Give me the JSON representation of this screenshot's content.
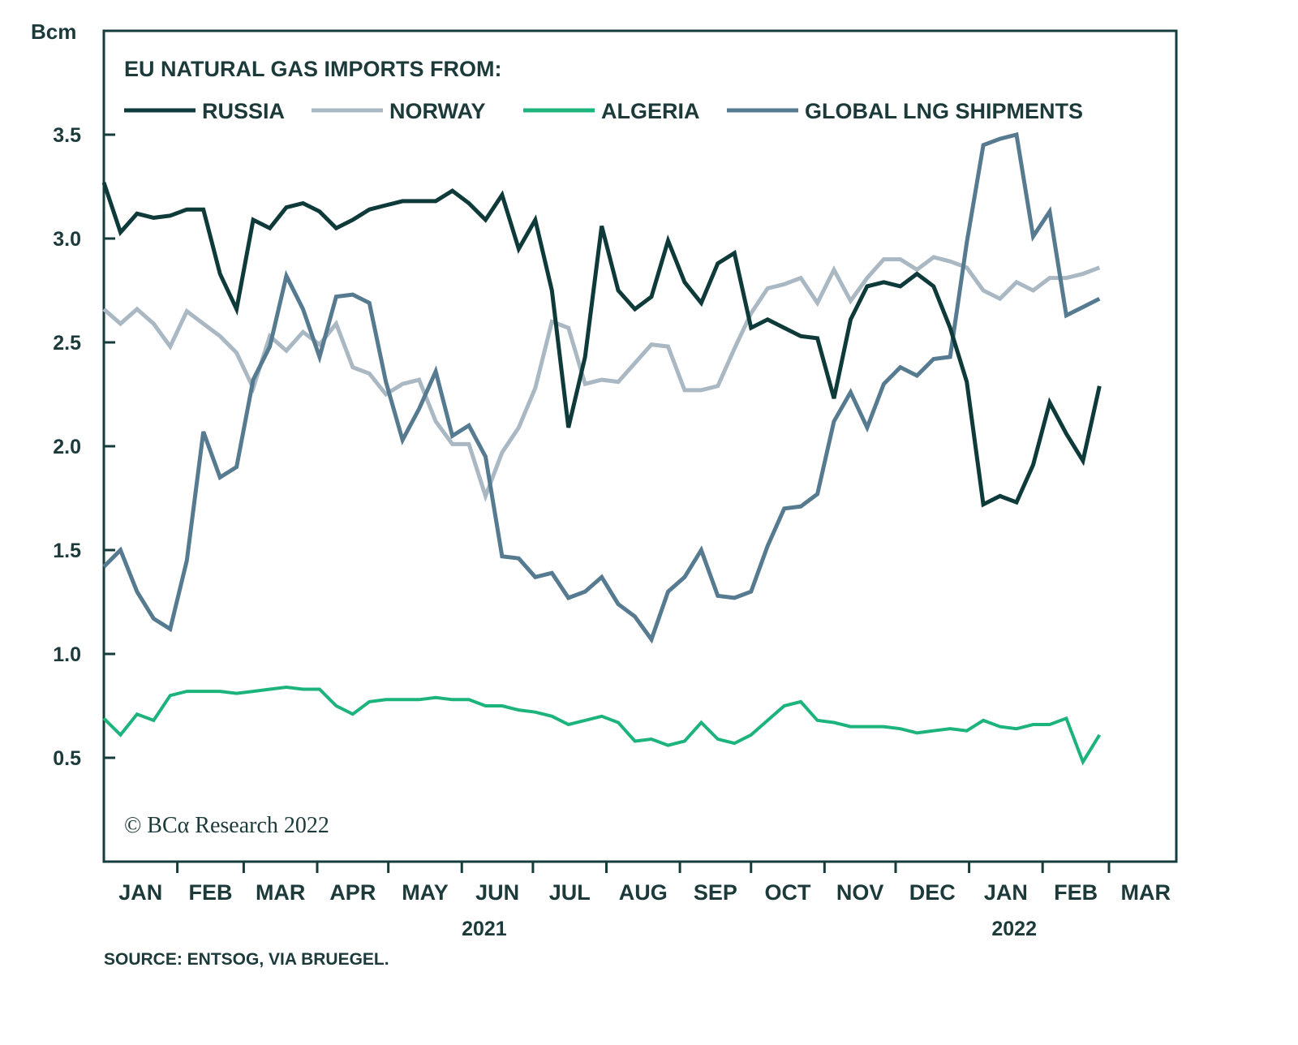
{
  "chart_data": {
    "type": "line",
    "title": "EU NATURAL GAS IMPORTS FROM:",
    "ylabel": "Bcm",
    "source": "SOURCE: ENTSOG, VIA BRUEGEL.",
    "copyright": "© BCα Research 2022",
    "ylim": [
      0,
      4
    ],
    "yticks": [
      "0.5",
      "1.0",
      "1.5",
      "2.0",
      "2.5",
      "3.0",
      "3.5"
    ],
    "xlim": [
      "2021-01-01",
      "2022-03-31"
    ],
    "month_labels": [
      "JAN",
      "FEB",
      "MAR",
      "APR",
      "MAY",
      "JUN",
      "JUL",
      "AUG",
      "SEP",
      "OCT",
      "NOV",
      "DEC",
      "JAN",
      "FEB",
      "MAR"
    ],
    "year_labels": [
      "2021",
      "2022"
    ],
    "grid": false,
    "legend_placement": "top-left",
    "x": [
      "2021-01-01",
      "2021-01-08",
      "2021-01-15",
      "2021-01-22",
      "2021-01-29",
      "2021-02-05",
      "2021-02-12",
      "2021-02-19",
      "2021-02-26",
      "2021-03-05",
      "2021-03-12",
      "2021-03-19",
      "2021-03-26",
      "2021-04-02",
      "2021-04-09",
      "2021-04-16",
      "2021-04-23",
      "2021-04-30",
      "2021-05-07",
      "2021-05-14",
      "2021-05-21",
      "2021-05-28",
      "2021-06-04",
      "2021-06-11",
      "2021-06-18",
      "2021-06-25",
      "2021-07-02",
      "2021-07-09",
      "2021-07-16",
      "2021-07-23",
      "2021-07-30",
      "2021-08-06",
      "2021-08-13",
      "2021-08-20",
      "2021-08-27",
      "2021-09-03",
      "2021-09-10",
      "2021-09-17",
      "2021-09-24",
      "2021-10-01",
      "2021-10-08",
      "2021-10-15",
      "2021-10-22",
      "2021-10-29",
      "2021-11-05",
      "2021-11-12",
      "2021-11-19",
      "2021-11-26",
      "2021-12-03",
      "2021-12-10",
      "2021-12-17",
      "2021-12-24",
      "2021-12-31",
      "2022-01-07",
      "2022-01-14",
      "2022-01-21",
      "2022-01-28",
      "2022-02-04",
      "2022-02-11",
      "2022-02-18",
      "2022-02-25"
    ],
    "series": [
      {
        "name": "RUSSIA",
        "color": "#0f3a3a",
        "width": 5,
        "values": [
          3.27,
          3.03,
          3.12,
          3.1,
          3.11,
          3.14,
          3.14,
          2.83,
          2.66,
          3.09,
          3.05,
          3.15,
          3.17,
          3.13,
          3.05,
          3.09,
          3.14,
          3.16,
          3.18,
          3.18,
          3.18,
          3.23,
          3.17,
          3.09,
          3.21,
          2.95,
          3.09,
          2.75,
          2.09,
          2.43,
          3.06,
          2.75,
          2.66,
          2.72,
          2.99,
          2.79,
          2.69,
          2.88,
          2.93,
          2.57,
          2.61,
          2.57,
          2.53,
          2.52,
          2.23,
          2.61,
          2.77,
          2.79,
          2.77,
          2.83,
          2.77,
          2.57,
          2.31,
          1.72,
          1.76,
          1.73,
          1.91,
          2.21,
          2.06,
          1.93,
          2.29
        ]
      },
      {
        "name": "NORWAY",
        "color": "#a9b8c3",
        "width": 5,
        "values": [
          2.66,
          2.59,
          2.66,
          2.59,
          2.48,
          2.65,
          2.59,
          2.53,
          2.45,
          2.28,
          2.53,
          2.46,
          2.55,
          2.49,
          2.59,
          2.38,
          2.35,
          2.25,
          2.3,
          2.32,
          2.12,
          2.01,
          2.01,
          1.76,
          1.97,
          2.09,
          2.28,
          2.6,
          2.57,
          2.3,
          2.32,
          2.31,
          2.4,
          2.49,
          2.48,
          2.27,
          2.27,
          2.29,
          2.47,
          2.64,
          2.76,
          2.78,
          2.81,
          2.69,
          2.85,
          2.7,
          2.81,
          2.9,
          2.9,
          2.85,
          2.91,
          2.89,
          2.86,
          2.75,
          2.71,
          2.79,
          2.75,
          2.81,
          2.81,
          2.83,
          2.86
        ]
      },
      {
        "name": "ALGERIA",
        "color": "#1db37d",
        "width": 4,
        "values": [
          0.69,
          0.61,
          0.71,
          0.68,
          0.8,
          0.82,
          0.82,
          0.82,
          0.81,
          0.82,
          0.83,
          0.84,
          0.83,
          0.83,
          0.75,
          0.71,
          0.77,
          0.78,
          0.78,
          0.78,
          0.79,
          0.78,
          0.78,
          0.75,
          0.75,
          0.73,
          0.72,
          0.7,
          0.66,
          0.68,
          0.7,
          0.67,
          0.58,
          0.59,
          0.56,
          0.58,
          0.67,
          0.59,
          0.57,
          0.61,
          0.68,
          0.75,
          0.77,
          0.68,
          0.67,
          0.65,
          0.65,
          0.65,
          0.64,
          0.62,
          0.63,
          0.64,
          0.63,
          0.68,
          0.65,
          0.64,
          0.66,
          0.66,
          0.69,
          0.48,
          0.61
        ]
      },
      {
        "name": "GLOBAL LNG SHIPMENTS",
        "color": "#567a90",
        "width": 5,
        "values": [
          1.42,
          1.5,
          1.3,
          1.17,
          1.12,
          1.45,
          2.07,
          1.85,
          1.9,
          2.32,
          2.48,
          2.82,
          2.66,
          2.43,
          2.72,
          2.73,
          2.69,
          2.31,
          2.03,
          2.18,
          2.36,
          2.05,
          2.1,
          1.95,
          1.47,
          1.46,
          1.37,
          1.39,
          1.27,
          1.3,
          1.37,
          1.24,
          1.18,
          1.07,
          1.3,
          1.37,
          1.5,
          1.28,
          1.27,
          1.3,
          1.52,
          1.7,
          1.71,
          1.77,
          2.12,
          2.26,
          2.09,
          2.3,
          2.38,
          2.34,
          2.42,
          2.43,
          2.98,
          3.45,
          3.48,
          3.5,
          3.01,
          3.13,
          2.63,
          2.67,
          2.71
        ]
      }
    ]
  }
}
